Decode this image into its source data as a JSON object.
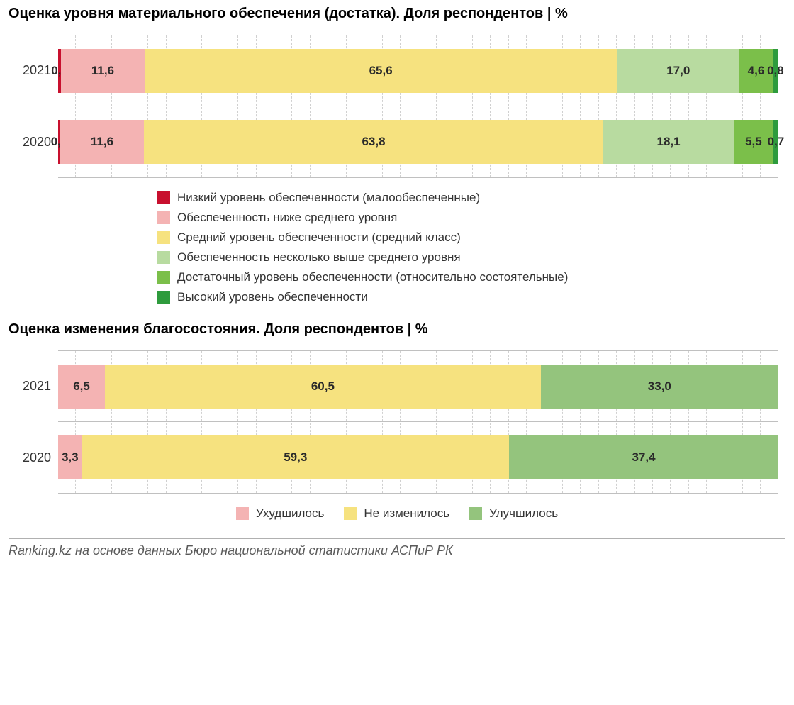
{
  "colors": {
    "c_low": "#c8102e",
    "c_below": "#f4b3b3",
    "c_mid": "#f6e27f",
    "c_above": "#b8dba0",
    "c_enough": "#7bbf4a",
    "c_high": "#2e9b3d",
    "c2_worse": "#f4b3b3",
    "c2_same": "#f6e27f",
    "c2_better": "#94c47d",
    "grid": "#d0d0d0",
    "border": "#c0c0c0",
    "text": "#333333",
    "title": "#000000"
  },
  "chart1": {
    "type": "stacked-bar-horizontal",
    "title": "Оценка уровня материального обеспечения (достатка). Доля респондентов | %",
    "grid_divisions": 40,
    "categories": [
      "2021",
      "2020"
    ],
    "series": [
      {
        "key": "low",
        "label": "Низкий уровень обеспеченности (малообеспеченные)",
        "color": "#c8102e"
      },
      {
        "key": "below",
        "label": "Обеспеченность ниже среднего уровня",
        "color": "#f4b3b3"
      },
      {
        "key": "mid",
        "label": "Средний уровень обеспеченности (средний класс)",
        "color": "#f6e27f"
      },
      {
        "key": "above",
        "label": "Обеспеченность несколько выше среднего уровня",
        "color": "#b8dba0"
      },
      {
        "key": "enough",
        "label": "Достаточный уровень обеспеченности (относительно состоятельные)",
        "color": "#7bbf4a"
      },
      {
        "key": "high",
        "label": "Высокий уровень обеспеченности",
        "color": "#2e9b3d"
      }
    ],
    "rows": [
      {
        "label": "2021",
        "values": [
          0.4,
          11.6,
          65.6,
          17.0,
          4.6,
          0.8
        ],
        "display": [
          "0,4",
          "11,6",
          "65,6",
          "17,0",
          "4,6",
          "0,8"
        ]
      },
      {
        "label": "2020",
        "values": [
          0.3,
          11.6,
          63.8,
          18.1,
          5.5,
          0.7
        ],
        "display": [
          "0,3",
          "11,6",
          "63,8",
          "18,1",
          "5,5",
          "0,7"
        ]
      }
    ]
  },
  "chart2": {
    "type": "stacked-bar-horizontal",
    "title": "Оценка изменения благосостояния. Доля респондентов | %",
    "grid_divisions": 40,
    "categories": [
      "2021",
      "2020"
    ],
    "series": [
      {
        "key": "worse",
        "label": "Ухудшилось",
        "color": "#f4b3b3"
      },
      {
        "key": "same",
        "label": "Не изменилось",
        "color": "#f6e27f"
      },
      {
        "key": "better",
        "label": "Улучшилось",
        "color": "#94c47d"
      }
    ],
    "rows": [
      {
        "label": "2021",
        "values": [
          6.5,
          60.5,
          33.0
        ],
        "display": [
          "6,5",
          "60,5",
          "33,0"
        ]
      },
      {
        "label": "2020",
        "values": [
          3.3,
          59.3,
          37.4
        ],
        "display": [
          "3,3",
          "59,3",
          "37,4"
        ]
      }
    ]
  },
  "source": "Ranking.kz на основе данных Бюро национальной статистики АСПиР РК"
}
